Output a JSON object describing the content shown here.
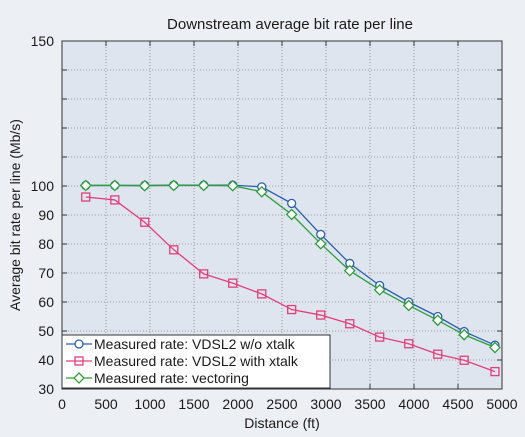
{
  "chart_data": {
    "type": "line",
    "title": "Downstream average bit rate per line",
    "xlabel": "Distance (ft)",
    "ylabel": "Average bit rate per line (Mb/s)",
    "xlim": [
      0,
      5000
    ],
    "ylim": [
      30,
      150
    ],
    "xticks": [
      0,
      500,
      1000,
      1500,
      2000,
      2500,
      3000,
      3500,
      4000,
      4500,
      5000
    ],
    "yticks": [
      30,
      40,
      50,
      60,
      70,
      80,
      90,
      100,
      110,
      120,
      130,
      140,
      150
    ],
    "xtick_labels": [
      "0",
      "500",
      "1000",
      "1500",
      "2000",
      "2500",
      "3000",
      "3500",
      "4000",
      "4500",
      "5000"
    ],
    "ytick_labels": [
      "30",
      "40",
      "50",
      "60",
      "70",
      "80",
      "90",
      "100",
      "",
      "",
      "",
      "",
      "150"
    ],
    "grid": true,
    "legend_position": "bottom-left",
    "series": [
      {
        "name": "Measured rate: VDSL2 w/o xtalk",
        "color": "#2b5fae",
        "marker": "circle",
        "points": [
          [
            270,
            100.2
          ],
          [
            600,
            100.2
          ],
          [
            940,
            100.2
          ],
          [
            1270,
            100.3
          ],
          [
            1610,
            100.3
          ],
          [
            1940,
            100.3
          ],
          [
            2270,
            99.7
          ],
          [
            2610,
            94
          ],
          [
            2940,
            83.3
          ],
          [
            3270,
            73.3
          ],
          [
            3610,
            65.7
          ],
          [
            3940,
            60
          ],
          [
            4270,
            55
          ],
          [
            4570,
            49.8
          ],
          [
            4920,
            45.1
          ]
        ]
      },
      {
        "name": "Measured rate: VDSL2 with xtalk",
        "color": "#e0407a",
        "marker": "square",
        "points": [
          [
            270,
            96.2
          ],
          [
            600,
            95.2
          ],
          [
            940,
            87.5
          ],
          [
            1270,
            78
          ],
          [
            1610,
            69.7
          ],
          [
            1940,
            66.5
          ],
          [
            2270,
            62.8
          ],
          [
            2610,
            57.4
          ],
          [
            2940,
            55.5
          ],
          [
            3270,
            52.5
          ],
          [
            3610,
            47.9
          ],
          [
            3940,
            45.6
          ],
          [
            4270,
            42
          ],
          [
            4570,
            39.9
          ],
          [
            4920,
            36
          ]
        ]
      },
      {
        "name": "Measured rate: vectoring",
        "color": "#2e9e3c",
        "marker": "diamond",
        "points": [
          [
            270,
            100.2
          ],
          [
            600,
            100.2
          ],
          [
            940,
            100.1
          ],
          [
            1270,
            100.2
          ],
          [
            1610,
            100.2
          ],
          [
            1940,
            100.1
          ],
          [
            2270,
            98
          ],
          [
            2610,
            90.2
          ],
          [
            2940,
            80.1
          ],
          [
            3270,
            70.8
          ],
          [
            3610,
            64.2
          ],
          [
            3940,
            58.8
          ],
          [
            4270,
            53.7
          ],
          [
            4570,
            48.7
          ],
          [
            4920,
            44.3
          ]
        ]
      }
    ]
  }
}
